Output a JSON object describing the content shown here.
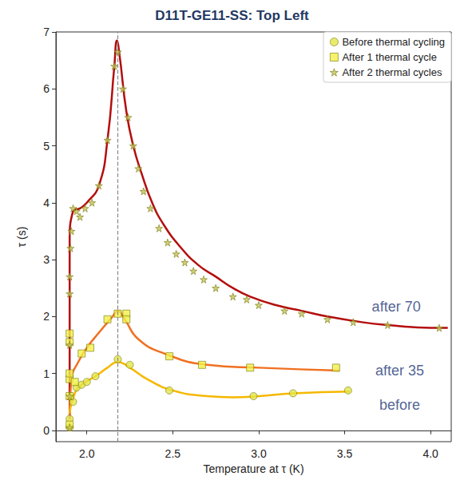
{
  "chart_data": {
    "type": "scatter",
    "title": "D11T-GE11-SS: Top Left",
    "x_label": "Temperature at τ (K)",
    "y_label": "τ (s)",
    "xlim": [
      1.82,
      4.12
    ],
    "xticks": [
      {
        "value": 2,
        "label": "2.0"
      },
      {
        "value": 2.5,
        "label": "2.5"
      },
      {
        "value": 3,
        "label": "3.0"
      },
      {
        "value": 3.5,
        "label": "3.5"
      },
      {
        "value": 4,
        "label": "4.0"
      }
    ],
    "ylim": [
      -0.2,
      7
    ],
    "yticks": [
      0,
      1,
      2,
      3,
      4,
      5,
      6,
      7
    ],
    "grid": false,
    "legend": "upper right",
    "vlines": [
      {
        "x": 2.18,
        "line_style": "dashed",
        "color": "#888888"
      }
    ],
    "series": [
      {
        "name": "Before thermal cycling",
        "type": "scatter",
        "marker": "circle",
        "color": "#e3e64a",
        "x": [
          1.9,
          1.9,
          1.92,
          1.94,
          1.97,
          2.0,
          2.05,
          2.18,
          2.25,
          2.48,
          2.97,
          3.2,
          3.52
        ],
        "values": [
          0.05,
          0.2,
          0.5,
          0.75,
          0.8,
          0.85,
          0.95,
          1.25,
          1.15,
          0.7,
          0.6,
          0.65,
          0.7
        ]
      },
      {
        "name": "After 1 thermal cycle",
        "type": "scatter",
        "marker": "square",
        "color": "#f2f04a",
        "x": [
          1.9,
          1.9,
          1.9,
          1.9,
          1.9,
          1.9,
          1.93,
          1.97,
          2.02,
          2.12,
          2.18,
          2.23,
          2.23,
          2.48,
          2.67,
          2.95,
          3.45
        ],
        "values": [
          0.1,
          0.6,
          0.9,
          1.0,
          1.55,
          1.7,
          0.85,
          1.35,
          1.45,
          1.95,
          2.05,
          2.05,
          1.95,
          1.3,
          1.15,
          1.1,
          1.1
        ]
      },
      {
        "name": "After 2 thermal cycles",
        "type": "scatter",
        "marker": "star",
        "color": "#c4c45a",
        "x": [
          1.9,
          1.9,
          1.9,
          1.9,
          1.9,
          1.905,
          1.91,
          1.92,
          1.94,
          1.96,
          1.99,
          2.03,
          2.07,
          2.12,
          2.16,
          2.18,
          2.21,
          2.24,
          2.27,
          2.3,
          2.33,
          2.37,
          2.42,
          2.47,
          2.52,
          2.57,
          2.62,
          2.68,
          2.75,
          2.85,
          2.93,
          3.0,
          3.15,
          3.25,
          3.4,
          3.55,
          3.75,
          4.05
        ],
        "values": [
          0.05,
          0.6,
          1.5,
          2.4,
          2.7,
          3.2,
          3.5,
          3.9,
          3.85,
          3.75,
          3.9,
          4.0,
          4.3,
          5.1,
          6.4,
          6.65,
          6.0,
          5.5,
          5.0,
          4.6,
          4.2,
          3.9,
          3.55,
          3.3,
          3.1,
          2.95,
          2.8,
          2.65,
          2.5,
          2.35,
          2.3,
          2.2,
          2.1,
          2.05,
          1.95,
          1.9,
          1.85,
          1.8
        ]
      }
    ],
    "curves": [
      {
        "name": "after 70",
        "type": "line",
        "line_style": "solid",
        "color": "#b40d0d",
        "x": [
          1.9,
          1.9,
          1.92,
          1.96,
          2.0,
          2.07,
          2.12,
          2.16,
          2.175,
          2.19,
          2.23,
          2.27,
          2.32,
          2.38,
          2.45,
          2.55,
          2.65,
          2.75,
          2.85,
          2.95,
          3.1,
          3.25,
          3.4,
          3.6,
          3.75,
          4.0,
          4.1
        ],
        "values": [
          0.2,
          3.3,
          3.85,
          3.9,
          4.0,
          4.3,
          5.1,
          6.4,
          6.85,
          6.6,
          5.6,
          5.0,
          4.5,
          4.0,
          3.6,
          3.2,
          2.9,
          2.7,
          2.5,
          2.35,
          2.2,
          2.1,
          2.0,
          1.9,
          1.85,
          1.8,
          1.8
        ],
        "label_at": [
          3.8,
          2.17
        ]
      },
      {
        "name": "after 35",
        "type": "line",
        "line_style": "solid",
        "color": "#f07020",
        "x": [
          1.9,
          1.91,
          1.95,
          2.0,
          2.08,
          2.15,
          2.18,
          2.22,
          2.3,
          2.45,
          2.7,
          3.0,
          3.47
        ],
        "values": [
          0.2,
          0.9,
          1.2,
          1.45,
          1.75,
          2.0,
          2.1,
          1.95,
          1.6,
          1.35,
          1.15,
          1.1,
          1.05
        ],
        "label_at": [
          3.82,
          1.05
        ]
      },
      {
        "name": "before",
        "type": "line",
        "line_style": "solid",
        "color": "#f5b800",
        "x": [
          1.9,
          1.93,
          1.97,
          2.05,
          2.12,
          2.18,
          2.25,
          2.35,
          2.5,
          2.7,
          2.85,
          3.0,
          3.2,
          3.53
        ],
        "values": [
          0.3,
          0.65,
          0.8,
          0.95,
          1.1,
          1.2,
          1.1,
          0.9,
          0.7,
          0.6,
          0.58,
          0.6,
          0.65,
          0.68
        ],
        "label_at": [
          3.82,
          0.44
        ]
      }
    ]
  }
}
